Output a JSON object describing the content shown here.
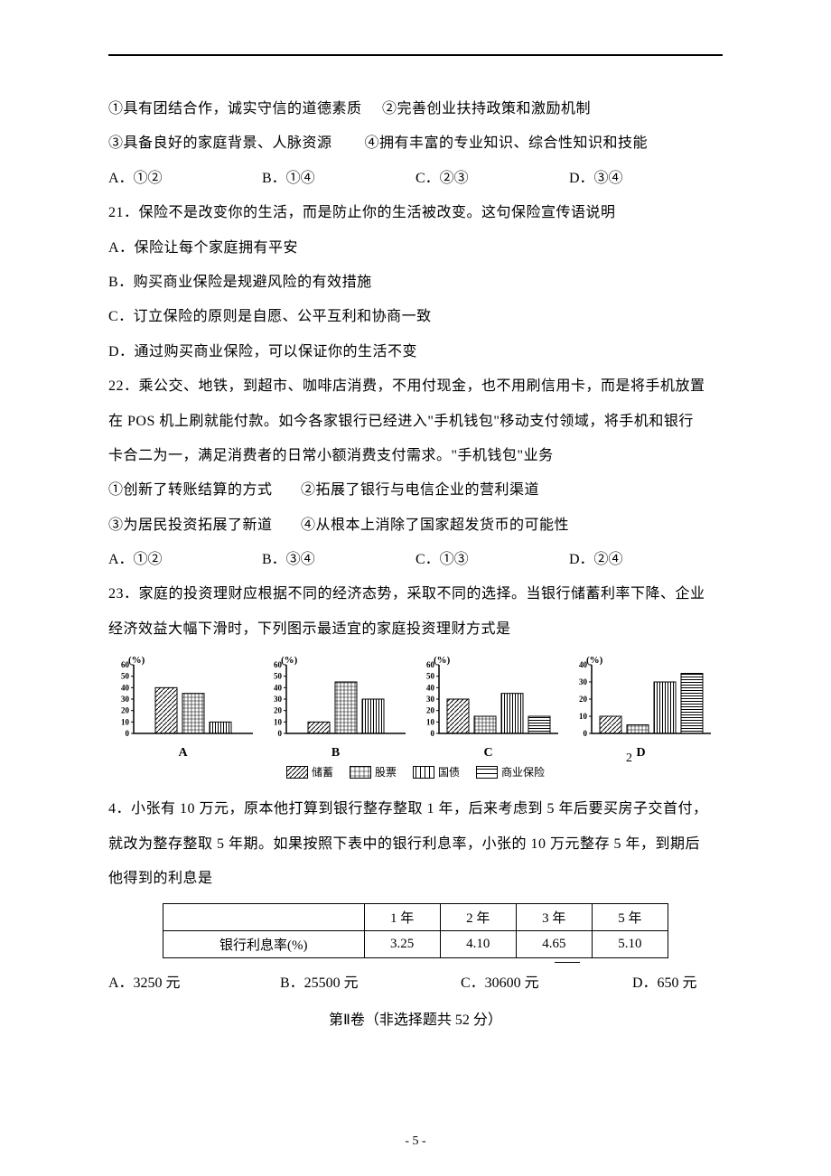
{
  "q20": {
    "opt1": "①具有团结合作，诚实守信的道德素质",
    "opt2": "②完善创业扶持政策和激励机制",
    "opt3": "③具备良好的家庭背景、人脉资源",
    "opt4": "④拥有丰富的专业知识、综合性知识和技能",
    "A": "A．①②",
    "B": "B．①④",
    "C": "C．②③",
    "D": "D．③④"
  },
  "q21": {
    "stem": "21．保险不是改变你的生活，而是防止你的生活被改变。这句保险宣传语说明",
    "A": "A．保险让每个家庭拥有平安",
    "B": "B．购买商业保险是规避风险的有效措施",
    "C": "C．订立保险的原则是自愿、公平互利和协商一致",
    "D": "D．通过购买商业保险，可以保证你的生活不变"
  },
  "q22": {
    "stem1": "22．乘公交、地铁，到超市、咖啡店消费，不用付现金，也不用刷信用卡，而是将手机放置",
    "stem2": "在 POS 机上刷就能付款。如今各家银行已经进入\"手机钱包\"移动支付领域，将手机和银行",
    "stem3": "卡合二为一，满足消费者的日常小额消费支付需求。\"手机钱包\"业务",
    "opt1": "①创新了转账结算的方式",
    "opt2": "②拓展了银行与电信企业的营利渠道",
    "opt3": "③为居民投资拓展了新道",
    "opt4": "④从根本上消除了国家超发货币的可能性",
    "A": "A．①②",
    "B": "B．③④",
    "C": "C．①③",
    "D": "D．②④"
  },
  "q23": {
    "stem1": "23．家庭的投资理财应根据不同的经济态势，采取不同的选择。当银行储蓄利率下降、企业",
    "stem2": "经济效益大幅下滑时，下列图示最适宜的家庭投资理财方式是",
    "yLabel": "(%)",
    "yTicks60": [
      60,
      50,
      40,
      30,
      20,
      10,
      0
    ],
    "yTicks40": [
      40,
      30,
      20,
      10,
      0
    ],
    "charts": {
      "A": {
        "label": "A",
        "ymax": 60,
        "bars": [
          40,
          35,
          10
        ]
      },
      "B": {
        "label": "B",
        "ymax": 60,
        "bars": [
          10,
          45,
          30
        ]
      },
      "C": {
        "label": "C",
        "ymax": 60,
        "bars": [
          30,
          15,
          35,
          15
        ]
      },
      "D": {
        "label": "D",
        "ymax": 40,
        "bars": [
          10,
          5,
          30,
          35
        ]
      }
    },
    "patterns": {
      "savings": "diag",
      "stocks": "grid",
      "bonds": "vert",
      "insurance": "horiz"
    },
    "legend": {
      "savings": "储蓄",
      "stocks": "股票",
      "bonds": "国债",
      "insurance": "商业保险"
    },
    "floatNum": "2"
  },
  "q24": {
    "stem1": "4．小张有 10 万元，原本他打算到银行整存整取 1 年，后来考虑到 5 年后要买房子交首付，",
    "stem2": "就改为整存整取 5 年期。如果按照下表中的银行利息率，小张的 10 万元整存 5 年，到期后",
    "stem3": "他得到的利息是",
    "table": {
      "rowLabel": "银行利息率(%)",
      "cols": [
        "1 年",
        "2 年",
        "3 年",
        "5 年"
      ],
      "vals": [
        "3.25",
        "4.10",
        "4.65",
        "5.10"
      ]
    },
    "A": "A．3250 元",
    "B": "B．25500 元",
    "C": "C．30600 元",
    "D": "D．650 元"
  },
  "section2": "第Ⅱ卷（非选择题共 52 分）",
  "pageNum": "- 5 -",
  "colors": {
    "ink": "#000000",
    "bg": "#ffffff"
  }
}
